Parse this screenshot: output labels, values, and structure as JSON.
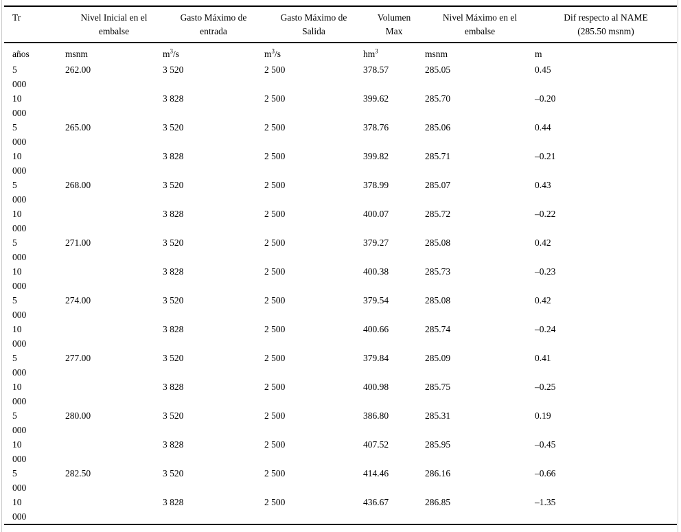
{
  "page": {
    "background_color": "#ffffff",
    "edge_line_color": "#c9c9c9",
    "rule_color": "#000000"
  },
  "table": {
    "columns": [
      {
        "id": "tr",
        "header_lines": [
          "Tr"
        ],
        "unit": {
          "base": "años",
          "sup": "",
          "rest": ""
        }
      },
      {
        "id": "nivel_inicial_embalse",
        "header_lines": [
          "Nivel Inicial en el",
          "embalse"
        ],
        "unit": {
          "base": "msnm",
          "sup": "",
          "rest": ""
        }
      },
      {
        "id": "gasto_maximo_entrada",
        "header_lines": [
          "Gasto Máximo de",
          "entrada"
        ],
        "unit": {
          "base": "m",
          "sup": "3",
          "rest": "/s"
        }
      },
      {
        "id": "gasto_maximo_salida",
        "header_lines": [
          "Gasto Máximo de",
          "Salida"
        ],
        "unit": {
          "base": "m",
          "sup": "3",
          "rest": "/s"
        }
      },
      {
        "id": "volumen_max",
        "header_lines": [
          "Volumen",
          "Max"
        ],
        "unit": {
          "base": "hm",
          "sup": "3",
          "rest": ""
        }
      },
      {
        "id": "nivel_maximo_embalse",
        "header_lines": [
          "Nivel Máximo en el",
          "embalse"
        ],
        "unit": {
          "base": "msnm",
          "sup": "",
          "rest": ""
        }
      },
      {
        "id": "dif_respecto_name",
        "header_lines": [
          "Dif respecto al NAME",
          "(285.50 msnm)"
        ],
        "unit": {
          "base": "m",
          "sup": "",
          "rest": ""
        }
      }
    ],
    "rows": [
      [
        "5 000",
        "262.00",
        "3 520",
        "2 500",
        "378.57",
        "285.05",
        "0.45"
      ],
      [
        "10 000",
        "",
        "3 828",
        "2 500",
        "399.62",
        "285.70",
        "–0.20"
      ],
      [
        "5 000",
        "265.00",
        "3 520",
        "2 500",
        "378.76",
        "285.06",
        "0.44"
      ],
      [
        "10 000",
        "",
        "3 828",
        "2 500",
        "399.82",
        "285.71",
        "–0.21"
      ],
      [
        "5 000",
        "268.00",
        "3 520",
        "2 500",
        "378.99",
        "285.07",
        "0.43"
      ],
      [
        "10 000",
        "",
        "3 828",
        "2 500",
        "400.07",
        "285.72",
        "–0.22"
      ],
      [
        "5 000",
        "271.00",
        "3 520",
        "2 500",
        "379.27",
        "285.08",
        "0.42"
      ],
      [
        "10 000",
        "",
        "3 828",
        "2 500",
        "400.38",
        "285.73",
        "–0.23"
      ],
      [
        "5 000",
        "274.00",
        "3 520",
        "2 500",
        "379.54",
        "285.08",
        "0.42"
      ],
      [
        "10 000",
        "",
        "3 828",
        "2 500",
        "400.66",
        "285.74",
        "–0.24"
      ],
      [
        "5 000",
        "277.00",
        "3 520",
        "2 500",
        "379.84",
        "285.09",
        "0.41"
      ],
      [
        "10 000",
        "",
        "3 828",
        "2 500",
        "400.98",
        "285.75",
        "–0.25"
      ],
      [
        "5 000",
        "280.00",
        "3 520",
        "2 500",
        "386.80",
        "285.31",
        "0.19"
      ],
      [
        "10 000",
        "",
        "3 828",
        "2 500",
        "407.52",
        "285.95",
        "–0.45"
      ],
      [
        "5 000",
        "282.50",
        "3 520",
        "2 500",
        "414.46",
        "286.16",
        "–0.66"
      ],
      [
        "10 000",
        "",
        "3 828",
        "2 500",
        "436.67",
        "286.85",
        "–1.35"
      ]
    ]
  }
}
